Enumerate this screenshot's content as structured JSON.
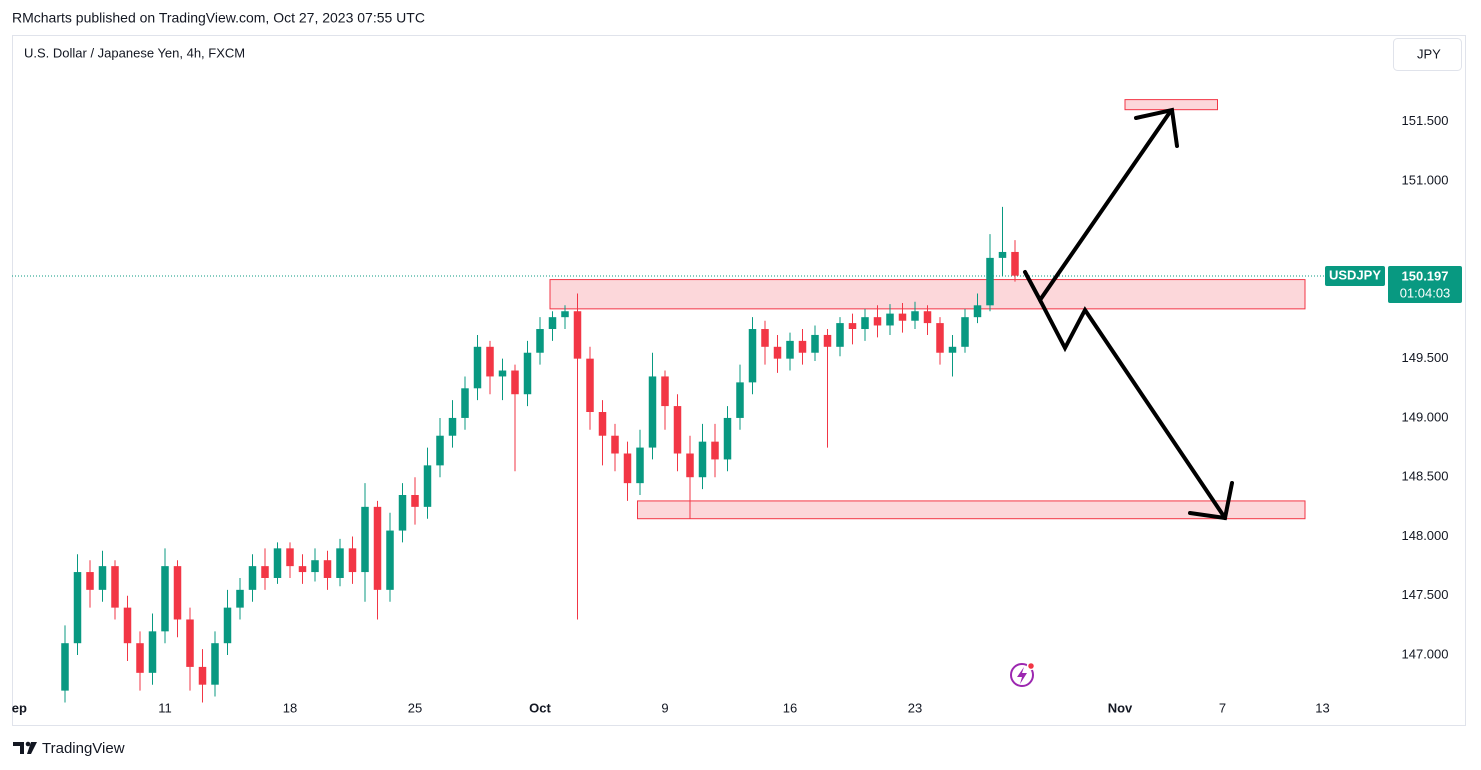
{
  "header": {
    "published": "RMcharts published on TradingView.com, Oct 27, 2023 07:55 UTC",
    "brand": "TradingView"
  },
  "chart_data": {
    "type": "candlestick",
    "title": "U.S. Dollar / Japanese Yen, 4h, FXCM",
    "currency": "JPY",
    "symbol": "USDJPY",
    "last_price": 150.197,
    "countdown": "01:04:03",
    "up_color": "#089981",
    "down_color": "#f23645",
    "grid": false,
    "x": [
      1,
      1.5,
      2,
      2.5,
      3,
      3.5,
      4,
      4.5,
      5,
      5.5,
      6,
      6.5,
      7,
      7.5,
      8,
      8.5,
      9,
      9.5,
      10,
      10.5,
      11,
      11.5,
      12,
      12.5,
      13,
      13.5,
      14,
      14.5,
      15,
      15.5,
      16,
      16.5,
      17,
      17.5,
      18,
      18.5,
      19,
      19.5,
      20,
      20.5,
      21,
      21.5,
      22,
      22.5,
      23,
      23.5,
      24,
      24.5,
      25,
      25.5,
      26,
      26.5,
      27,
      27.5,
      28,
      28.5,
      29,
      29.5,
      30,
      30.5,
      31,
      31.5,
      32,
      32.5,
      33,
      33.5,
      34,
      34.5,
      35,
      35.5,
      36,
      36.5,
      37,
      37.5,
      38,
      38.5,
      39
    ],
    "open": [
      146.7,
      147.1,
      147.7,
      147.55,
      147.75,
      147.4,
      147.1,
      146.85,
      147.2,
      147.75,
      147.3,
      146.9,
      146.75,
      147.1,
      147.4,
      147.55,
      147.75,
      147.65,
      147.9,
      147.75,
      147.7,
      147.8,
      147.65,
      147.9,
      147.7,
      148.25,
      147.55,
      148.05,
      148.35,
      148.25,
      148.6,
      148.85,
      149.0,
      149.25,
      149.6,
      149.35,
      149.4,
      149.2,
      149.55,
      149.75,
      149.85,
      149.9,
      149.5,
      149.05,
      148.85,
      148.7,
      148.45,
      148.75,
      149.35,
      149.1,
      148.7,
      148.5,
      148.8,
      148.65,
      149.0,
      149.3,
      149.75,
      149.6,
      149.5,
      149.65,
      149.55,
      149.7,
      149.6,
      149.8,
      149.75,
      149.85,
      149.78,
      149.88,
      149.82,
      149.9,
      149.8,
      149.55,
      149.6,
      149.85,
      149.95,
      150.35,
      150.4
    ],
    "high": [
      147.25,
      147.85,
      147.8,
      147.88,
      147.8,
      147.5,
      147.2,
      147.35,
      147.9,
      147.8,
      147.4,
      147.05,
      147.2,
      147.55,
      147.65,
      147.85,
      147.9,
      147.95,
      147.95,
      147.85,
      147.9,
      147.88,
      147.98,
      148.0,
      148.45,
      148.3,
      148.2,
      148.45,
      148.5,
      148.75,
      149.0,
      149.15,
      149.35,
      149.7,
      149.65,
      149.5,
      149.45,
      149.65,
      149.85,
      149.9,
      149.95,
      150.05,
      149.6,
      149.15,
      148.95,
      148.8,
      148.9,
      149.55,
      149.4,
      149.2,
      148.85,
      148.95,
      148.95,
      149.1,
      149.45,
      149.85,
      149.82,
      149.7,
      149.72,
      149.75,
      149.78,
      149.75,
      149.85,
      149.88,
      149.92,
      149.95,
      149.96,
      149.97,
      149.98,
      149.95,
      149.85,
      149.7,
      149.92,
      150.05,
      150.55,
      150.78,
      150.5
    ],
    "low": [
      146.6,
      147.0,
      147.4,
      147.45,
      147.3,
      146.95,
      146.7,
      146.75,
      147.1,
      147.15,
      146.7,
      146.6,
      146.65,
      147.0,
      147.3,
      147.45,
      147.55,
      147.6,
      147.65,
      147.6,
      147.62,
      147.55,
      147.58,
      147.6,
      147.45,
      147.3,
      147.45,
      147.95,
      148.1,
      148.15,
      148.5,
      148.75,
      148.9,
      149.15,
      149.2,
      149.15,
      148.55,
      149.1,
      149.45,
      149.65,
      149.75,
      147.3,
      148.9,
      148.6,
      148.55,
      148.3,
      148.35,
      148.65,
      148.9,
      148.55,
      148.15,
      148.4,
      148.5,
      148.55,
      148.9,
      149.2,
      149.45,
      149.38,
      149.4,
      149.45,
      149.48,
      148.75,
      149.52,
      149.62,
      149.65,
      149.68,
      149.7,
      149.72,
      149.75,
      149.7,
      149.45,
      149.35,
      149.55,
      149.8,
      149.9,
      150.2,
      150.15
    ],
    "close": [
      147.1,
      147.7,
      147.55,
      147.75,
      147.4,
      147.1,
      146.85,
      147.2,
      147.75,
      147.3,
      146.9,
      146.75,
      147.1,
      147.4,
      147.55,
      147.75,
      147.65,
      147.9,
      147.75,
      147.7,
      147.8,
      147.65,
      147.9,
      147.7,
      148.25,
      147.55,
      148.05,
      148.35,
      148.25,
      148.6,
      148.85,
      149.0,
      149.25,
      149.6,
      149.35,
      149.4,
      149.2,
      149.55,
      149.75,
      149.85,
      149.9,
      149.5,
      149.05,
      148.85,
      148.7,
      148.45,
      148.75,
      149.35,
      149.1,
      148.7,
      148.5,
      148.8,
      148.65,
      149.0,
      149.3,
      149.75,
      149.6,
      149.5,
      149.65,
      149.55,
      149.7,
      149.6,
      149.8,
      149.75,
      149.85,
      149.78,
      149.88,
      149.82,
      149.9,
      149.8,
      149.55,
      149.6,
      149.85,
      149.95,
      150.35,
      150.4,
      150.2
    ],
    "zones": [
      {
        "x": [
          43.4,
          47.1
        ],
        "y": [
          151.6,
          151.685
        ]
      },
      {
        "x": [
          20.4,
          50.6
        ],
        "y": [
          149.92,
          150.167
        ]
      },
      {
        "x": [
          23.9,
          50.6
        ],
        "y": [
          148.15,
          148.3
        ]
      }
    ],
    "xlim": [
      -1.12,
      53.8
    ],
    "ylim": [
      146.41,
      152.23
    ],
    "xticks": [
      {
        "value": -1,
        "label": "Sep"
      },
      {
        "value": 5,
        "label": "11"
      },
      {
        "value": 10,
        "label": "18"
      },
      {
        "value": 15,
        "label": "25"
      },
      {
        "value": 20,
        "label": "Oct"
      },
      {
        "value": 25,
        "label": "9"
      },
      {
        "value": 30,
        "label": "16"
      },
      {
        "value": 35,
        "label": "23"
      },
      {
        "value": 43.2,
        "label": "Nov"
      },
      {
        "value": 47.3,
        "label": "7"
      },
      {
        "value": 51.3,
        "label": "13"
      }
    ],
    "yticks": [
      {
        "value": 147,
        "label": "147.000"
      },
      {
        "value": 147.5,
        "label": "147.500"
      },
      {
        "value": 148,
        "label": "148.000"
      },
      {
        "value": 148.5,
        "label": "148.500"
      },
      {
        "value": 149,
        "label": "149.000"
      },
      {
        "value": 149.5,
        "label": "149.500"
      },
      {
        "value": 151,
        "label": "151.000"
      },
      {
        "value": 151.5,
        "label": "151.500"
      }
    ]
  }
}
